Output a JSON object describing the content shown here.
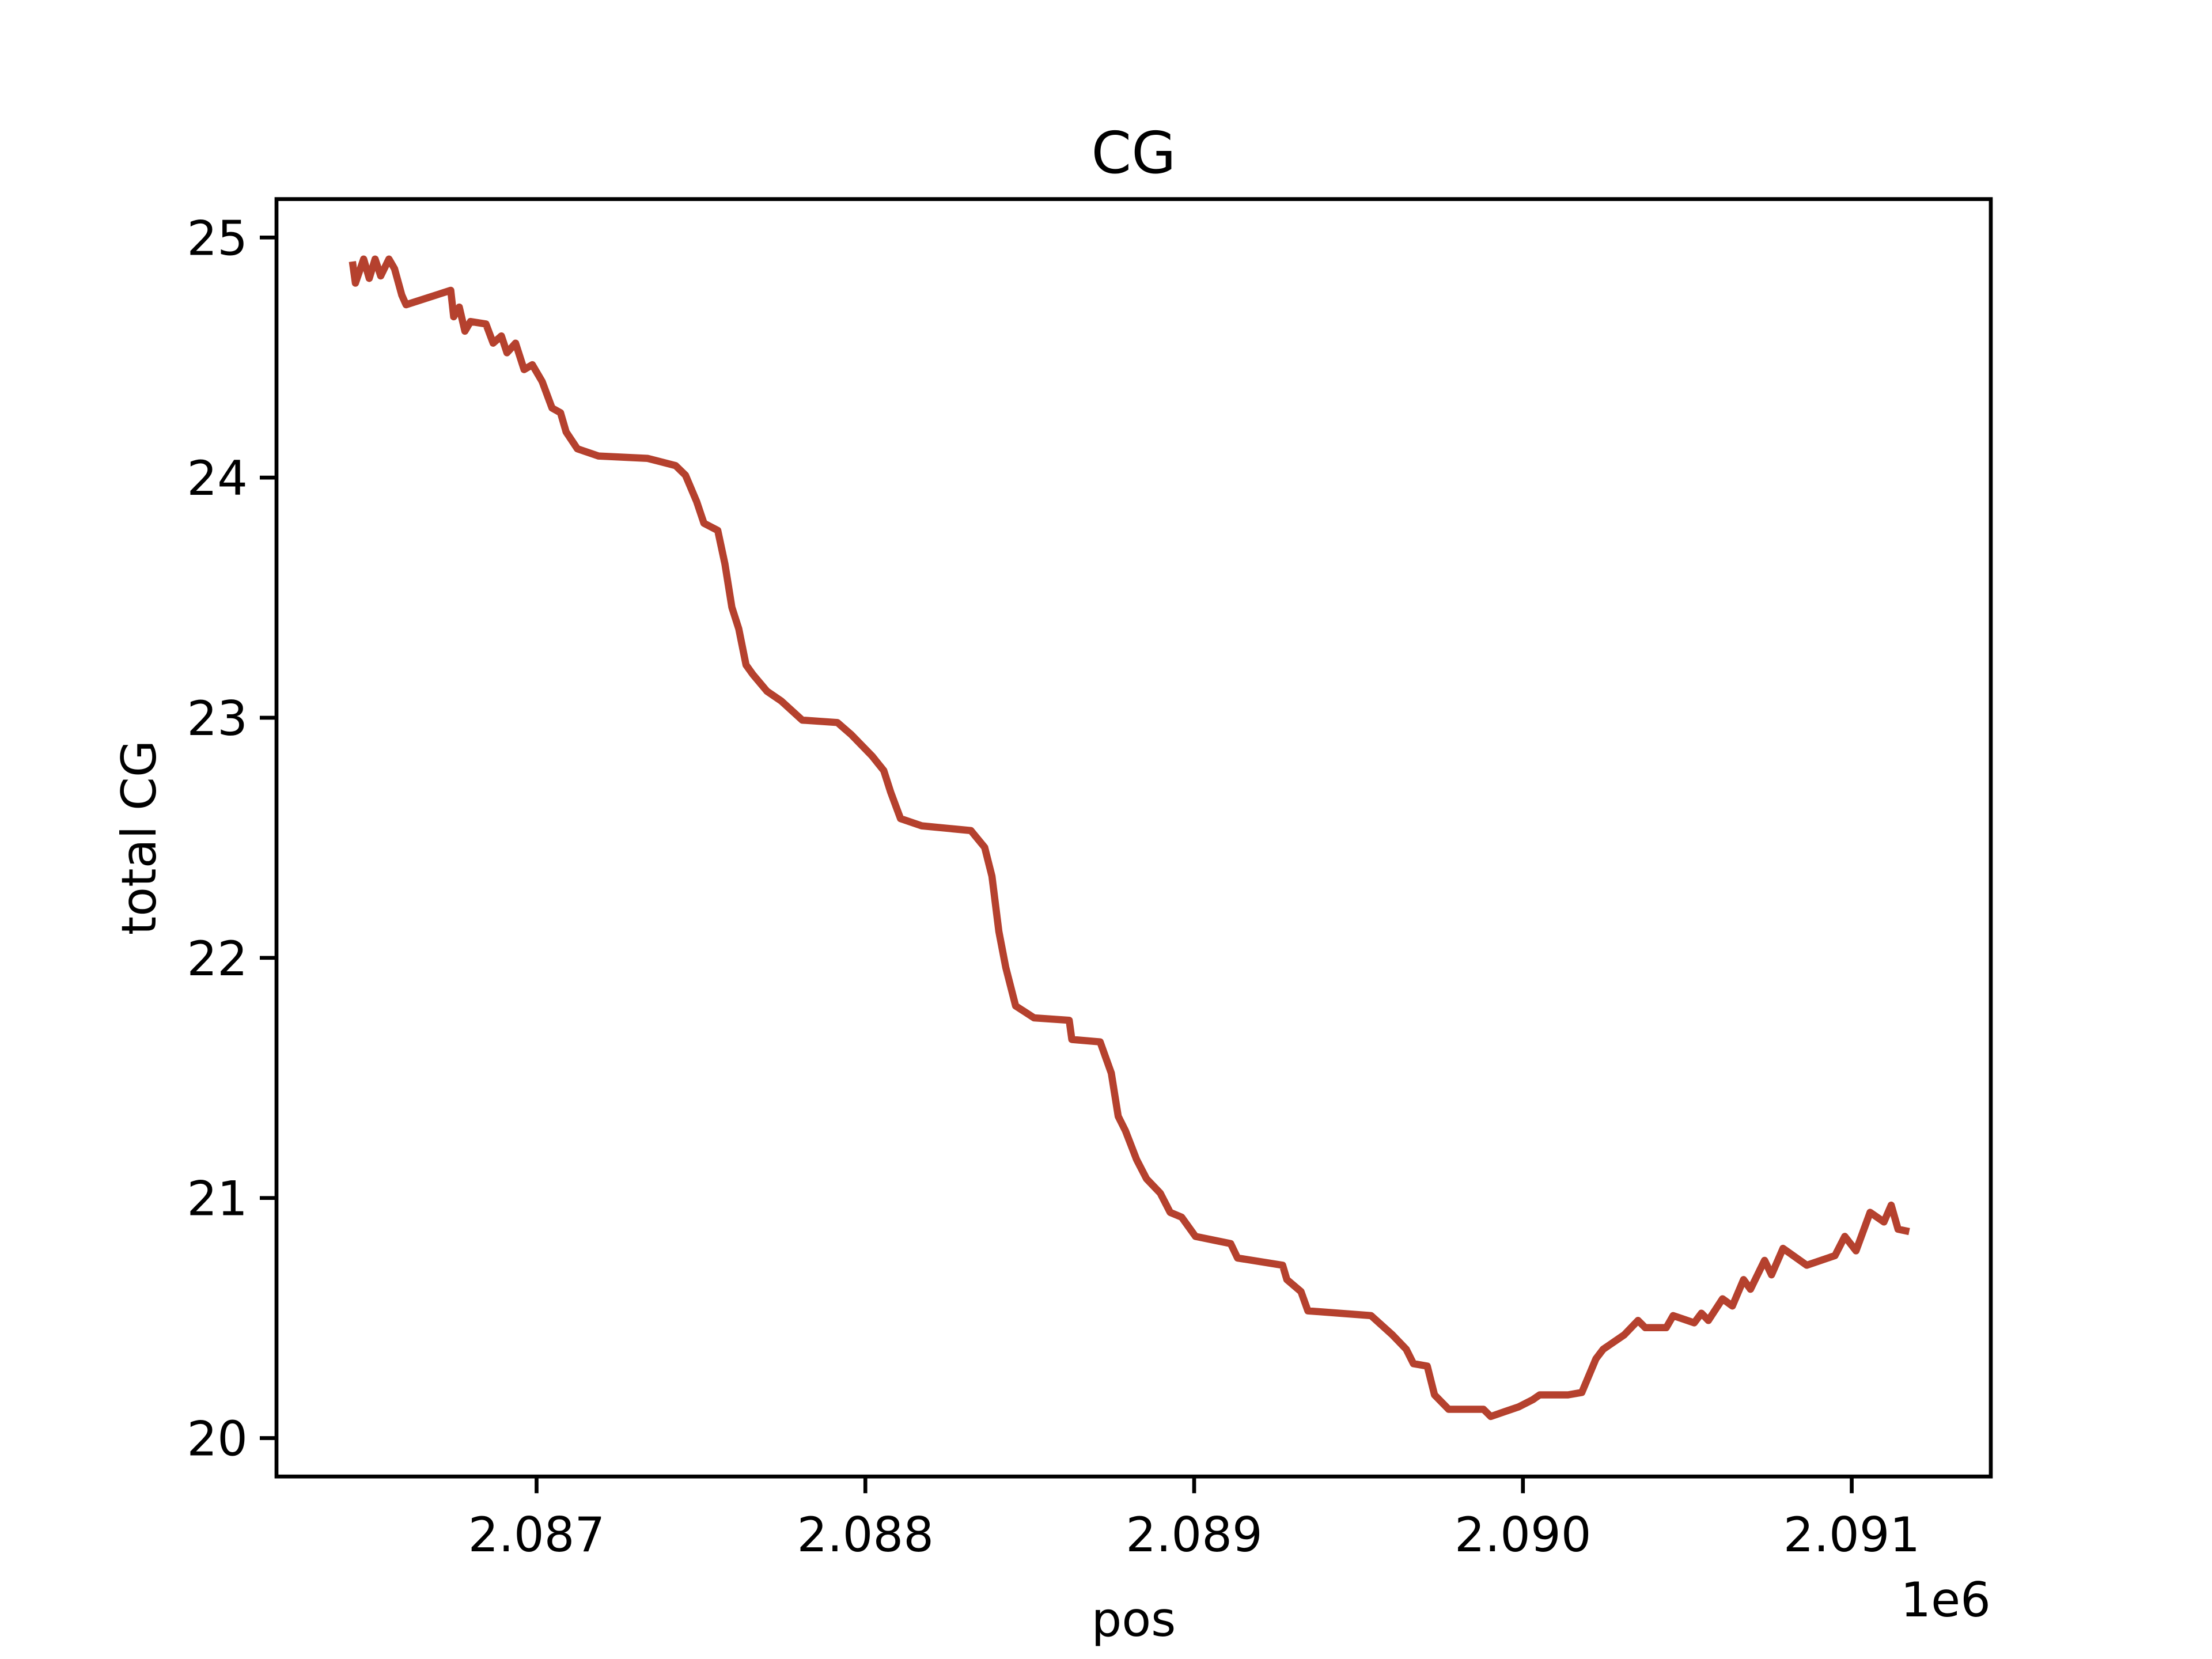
{
  "chart_data": {
    "type": "line",
    "title": "CG",
    "x_label": "pos",
    "y_label": "total CG",
    "x_offset_text": "1e6",
    "color": "#b5412e",
    "x": [
      2086440,
      2086449,
      2086474,
      2086491,
      2086509,
      2086526,
      2086551,
      2086568,
      2086590,
      2086603,
      2086739,
      2086748,
      2086765,
      2086782,
      2086799,
      2086846,
      2086868,
      2086893,
      2086910,
      2086936,
      2086962,
      2086987,
      2087017,
      2087047,
      2087073,
      2087090,
      2087124,
      2087188,
      2087338,
      2087423,
      2087453,
      2087487,
      2087509,
      2087551,
      2087573,
      2087594,
      2087615,
      2087637,
      2087658,
      2087701,
      2087744,
      2087808,
      2087915,
      2087957,
      2088021,
      2088056,
      2088077,
      2088107,
      2088171,
      2088321,
      2088363,
      2088385,
      2088406,
      2088427,
      2088457,
      2088513,
      2088620,
      2088628,
      2088714,
      2088748,
      2088769,
      2088791,
      2088825,
      2088855,
      2088897,
      2088927,
      2088962,
      2089004,
      2089111,
      2089132,
      2089269,
      2089282,
      2089325,
      2089346,
      2089538,
      2089603,
      2089645,
      2089667,
      2089709,
      2089731,
      2089774,
      2089880,
      2089902,
      2089944,
      2089987,
      2090030,
      2090051,
      2090137,
      2090179,
      2090222,
      2090244,
      2090308,
      2090350,
      2090372,
      2090436,
      2090457,
      2090521,
      2090543,
      2090564,
      2090607,
      2090637,
      2090671,
      2090692,
      2090735,
      2090756,
      2090791,
      2090863,
      2090949,
      2090979,
      2091013,
      2091056,
      2091098,
      2091120,
      2091141,
      2091175
    ],
    "values": [
      24.9,
      24.81,
      24.91,
      24.83,
      24.91,
      24.84,
      24.91,
      24.87,
      24.76,
      24.72,
      24.78,
      24.67,
      24.71,
      24.61,
      24.65,
      24.64,
      24.56,
      24.59,
      24.52,
      24.56,
      24.45,
      24.47,
      24.4,
      24.29,
      24.27,
      24.19,
      24.12,
      24.09,
      24.08,
      24.05,
      24.01,
      23.9,
      23.81,
      23.78,
      23.64,
      23.46,
      23.37,
      23.22,
      23.18,
      23.11,
      23.07,
      22.99,
      22.98,
      22.93,
      22.84,
      22.78,
      22.69,
      22.58,
      22.55,
      22.53,
      22.46,
      22.34,
      22.11,
      21.96,
      21.8,
      21.75,
      21.74,
      21.66,
      21.65,
      21.52,
      21.34,
      21.28,
      21.16,
      21.08,
      21.02,
      20.94,
      20.92,
      20.84,
      20.81,
      20.75,
      20.72,
      20.66,
      20.61,
      20.53,
      20.51,
      20.43,
      20.37,
      20.31,
      20.3,
      20.18,
      20.12,
      20.12,
      20.09,
      20.11,
      20.13,
      20.16,
      20.18,
      20.18,
      20.19,
      20.33,
      20.37,
      20.43,
      20.49,
      20.46,
      20.46,
      20.51,
      20.48,
      20.52,
      20.49,
      20.58,
      20.55,
      20.66,
      20.62,
      20.74,
      20.68,
      20.79,
      20.72,
      20.76,
      20.84,
      20.78,
      20.94,
      20.9,
      20.97,
      20.87,
      20.86
    ],
    "xlim": [
      2086209,
      2091423
    ],
    "ylim": [
      19.84,
      25.16
    ],
    "xticks": [
      {
        "value": 2087000,
        "label": "2.087"
      },
      {
        "value": 2088000,
        "label": "2.088"
      },
      {
        "value": 2089000,
        "label": "2.089"
      },
      {
        "value": 2090000,
        "label": "2.090"
      },
      {
        "value": 2091000,
        "label": "2.091"
      }
    ],
    "yticks": [
      20,
      21,
      22,
      23,
      24,
      25
    ]
  }
}
